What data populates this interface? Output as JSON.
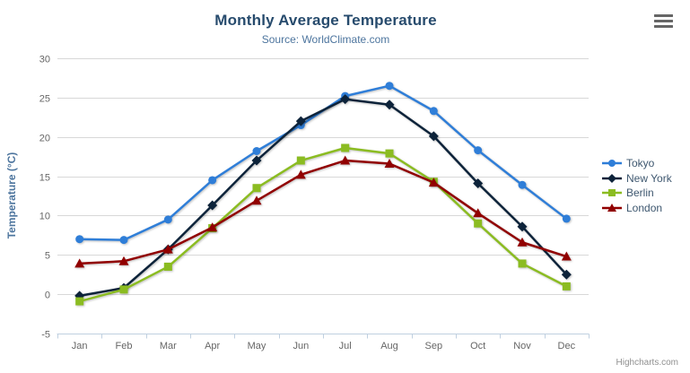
{
  "chart_data": {
    "type": "line",
    "title": "Monthly Average Temperature",
    "subtitle": "Source: WorldClimate.com",
    "categories": [
      "Jan",
      "Feb",
      "Mar",
      "Apr",
      "May",
      "Jun",
      "Jul",
      "Aug",
      "Sep",
      "Oct",
      "Nov",
      "Dec"
    ],
    "xlabel": "",
    "ylabel": "Temperature (°C)",
    "ylim": [
      -5,
      30
    ],
    "ytick_step": 5,
    "grid": true,
    "legend_position": "right",
    "series": [
      {
        "name": "Tokyo",
        "color": "#2f7ed8",
        "marker": "circle",
        "values": [
          7.0,
          6.9,
          9.5,
          14.5,
          18.2,
          21.5,
          25.2,
          26.5,
          23.3,
          18.3,
          13.9,
          9.6
        ]
      },
      {
        "name": "New York",
        "color": "#0d233a",
        "marker": "diamond",
        "values": [
          -0.2,
          0.8,
          5.7,
          11.3,
          17.0,
          22.0,
          24.8,
          24.1,
          20.1,
          14.1,
          8.6,
          2.5
        ]
      },
      {
        "name": "Berlin",
        "color": "#8bbc21",
        "marker": "square",
        "values": [
          -0.9,
          0.6,
          3.5,
          8.4,
          13.5,
          17.0,
          18.6,
          17.9,
          14.3,
          9.0,
          3.9,
          1.0
        ]
      },
      {
        "name": "London",
        "color": "#910000",
        "marker": "triangle",
        "values": [
          3.9,
          4.2,
          5.7,
          8.5,
          11.9,
          15.2,
          17.0,
          16.6,
          14.2,
          10.3,
          6.6,
          4.8
        ]
      }
    ],
    "colors": {
      "title": "#274b6d",
      "subtitle": "#4d759e",
      "axis_title": "#4d759e",
      "axis_labels": "#666666",
      "gridline": "#d8d8d8",
      "axis_line": "#c0d0e0",
      "legend_text": "#3E576F",
      "background": "#ffffff"
    }
  },
  "export_menu": {
    "icon": "hamburger-icon"
  },
  "credits": {
    "label": "Highcharts.com"
  }
}
